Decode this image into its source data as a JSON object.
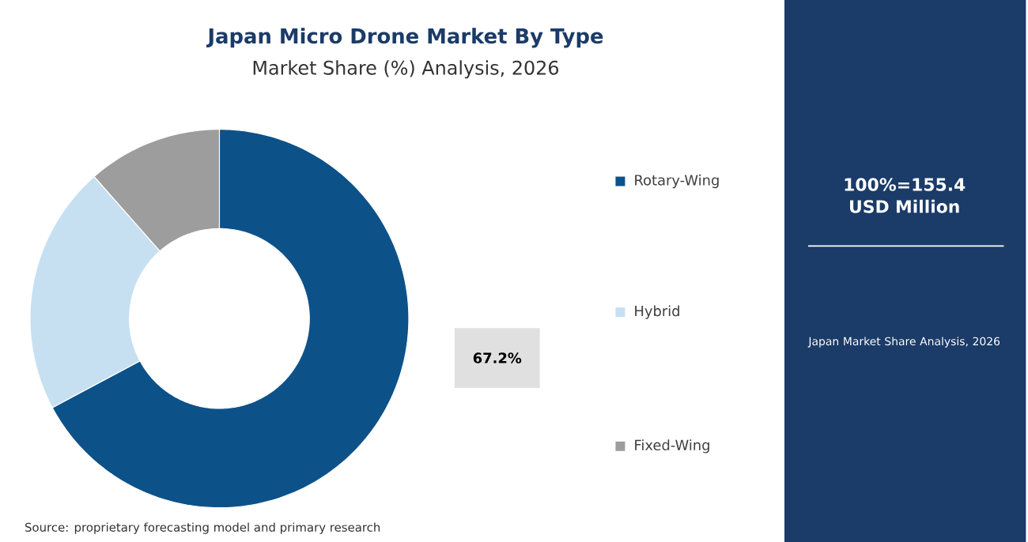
{
  "chart_data": {
    "type": "donut",
    "title": "Japan Micro Drone Market By Type",
    "subtitle": "Market Share (%) Analysis, 2026",
    "categories": [
      "Rotary-Wing",
      "Hybrid",
      "Fixed-Wing"
    ],
    "values": [
      67.2,
      21.3,
      11.5
    ],
    "colors": [
      "#0d5189",
      "#c6e0f1",
      "#9d9d9d"
    ],
    "value_labels": [
      "67.2%",
      null,
      null
    ],
    "legend": "right",
    "annotations": [
      "100%=155.4 USD Million",
      "Japan Market Share Analysis, 2026",
      "Source: proprietary forecasting model and primary research"
    ]
  }
}
